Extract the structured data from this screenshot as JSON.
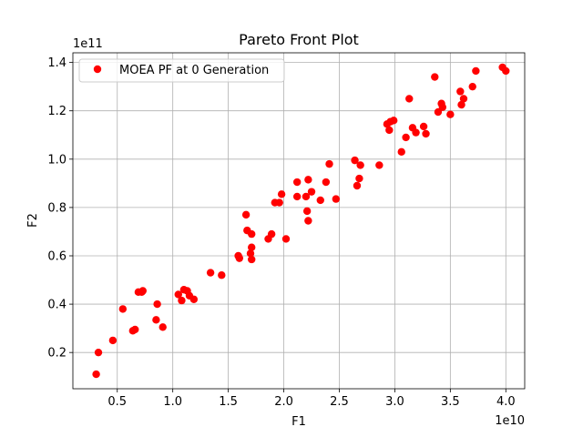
{
  "chart_data": {
    "type": "scatter",
    "title": "Pareto Front Plot",
    "xlabel": "F1",
    "ylabel": "F2",
    "x_offset_text": "1e10",
    "y_offset_text": "1e11",
    "xlim": [
      0.1,
      4.17
    ],
    "ylim": [
      0.05,
      1.44
    ],
    "x_scale": 10000000000,
    "y_scale": 100000000000,
    "x_ticks": [
      0.5,
      1.0,
      1.5,
      2.0,
      2.5,
      3.0,
      3.5,
      4.0
    ],
    "x_tick_labels": [
      "0.5",
      "1.0",
      "1.5",
      "2.0",
      "2.5",
      "3.0",
      "3.5",
      "4.0"
    ],
    "y_ticks": [
      0.2,
      0.4,
      0.6,
      0.8,
      1.0,
      1.2,
      1.4
    ],
    "y_tick_labels": [
      "0.2",
      "0.4",
      "0.6",
      "0.8",
      "1.0",
      "1.2",
      "1.4"
    ],
    "grid": true,
    "legend_position": "upper-left",
    "series": [
      {
        "name": "MOEA PF at 0 Generation",
        "color": "#ff0000",
        "marker": "circle",
        "points": [
          [
            0.31,
            0.11
          ],
          [
            0.33,
            0.2
          ],
          [
            0.46,
            0.25
          ],
          [
            0.55,
            0.38
          ],
          [
            0.64,
            0.29
          ],
          [
            0.66,
            0.295
          ],
          [
            0.69,
            0.45
          ],
          [
            0.72,
            0.45
          ],
          [
            0.73,
            0.455
          ],
          [
            0.85,
            0.335
          ],
          [
            0.86,
            0.4
          ],
          [
            0.91,
            0.305
          ],
          [
            1.05,
            0.44
          ],
          [
            1.08,
            0.415
          ],
          [
            1.1,
            0.46
          ],
          [
            1.13,
            0.455
          ],
          [
            1.15,
            0.435
          ],
          [
            1.19,
            0.42
          ],
          [
            1.34,
            0.53
          ],
          [
            1.44,
            0.52
          ],
          [
            1.59,
            0.6
          ],
          [
            1.6,
            0.59
          ],
          [
            1.66,
            0.77
          ],
          [
            1.67,
            0.705
          ],
          [
            1.7,
            0.61
          ],
          [
            1.71,
            0.69
          ],
          [
            1.71,
            0.635
          ],
          [
            1.71,
            0.585
          ],
          [
            1.86,
            0.67
          ],
          [
            1.89,
            0.69
          ],
          [
            1.92,
            0.82
          ],
          [
            1.96,
            0.82
          ],
          [
            1.98,
            0.855
          ],
          [
            2.02,
            0.67
          ],
          [
            2.12,
            0.905
          ],
          [
            2.12,
            0.845
          ],
          [
            2.2,
            0.845
          ],
          [
            2.21,
            0.785
          ],
          [
            2.22,
            0.915
          ],
          [
            2.22,
            0.745
          ],
          [
            2.25,
            0.865
          ],
          [
            2.33,
            0.83
          ],
          [
            2.38,
            0.905
          ],
          [
            2.41,
            0.98
          ],
          [
            2.47,
            0.835
          ],
          [
            2.64,
            0.995
          ],
          [
            2.66,
            0.89
          ],
          [
            2.68,
            0.92
          ],
          [
            2.69,
            0.975
          ],
          [
            2.86,
            0.975
          ],
          [
            2.93,
            1.145
          ],
          [
            2.95,
            1.12
          ],
          [
            2.96,
            1.155
          ],
          [
            2.99,
            1.16
          ],
          [
            3.06,
            1.03
          ],
          [
            3.1,
            1.09
          ],
          [
            3.13,
            1.25
          ],
          [
            3.16,
            1.13
          ],
          [
            3.19,
            1.11
          ],
          [
            3.26,
            1.135
          ],
          [
            3.28,
            1.105
          ],
          [
            3.36,
            1.34
          ],
          [
            3.39,
            1.195
          ],
          [
            3.42,
            1.23
          ],
          [
            3.43,
            1.215
          ],
          [
            3.5,
            1.185
          ],
          [
            3.59,
            1.28
          ],
          [
            3.6,
            1.225
          ],
          [
            3.62,
            1.25
          ],
          [
            3.7,
            1.3
          ],
          [
            3.73,
            1.365
          ],
          [
            3.97,
            1.38
          ],
          [
            4.0,
            1.365
          ]
        ]
      }
    ]
  }
}
